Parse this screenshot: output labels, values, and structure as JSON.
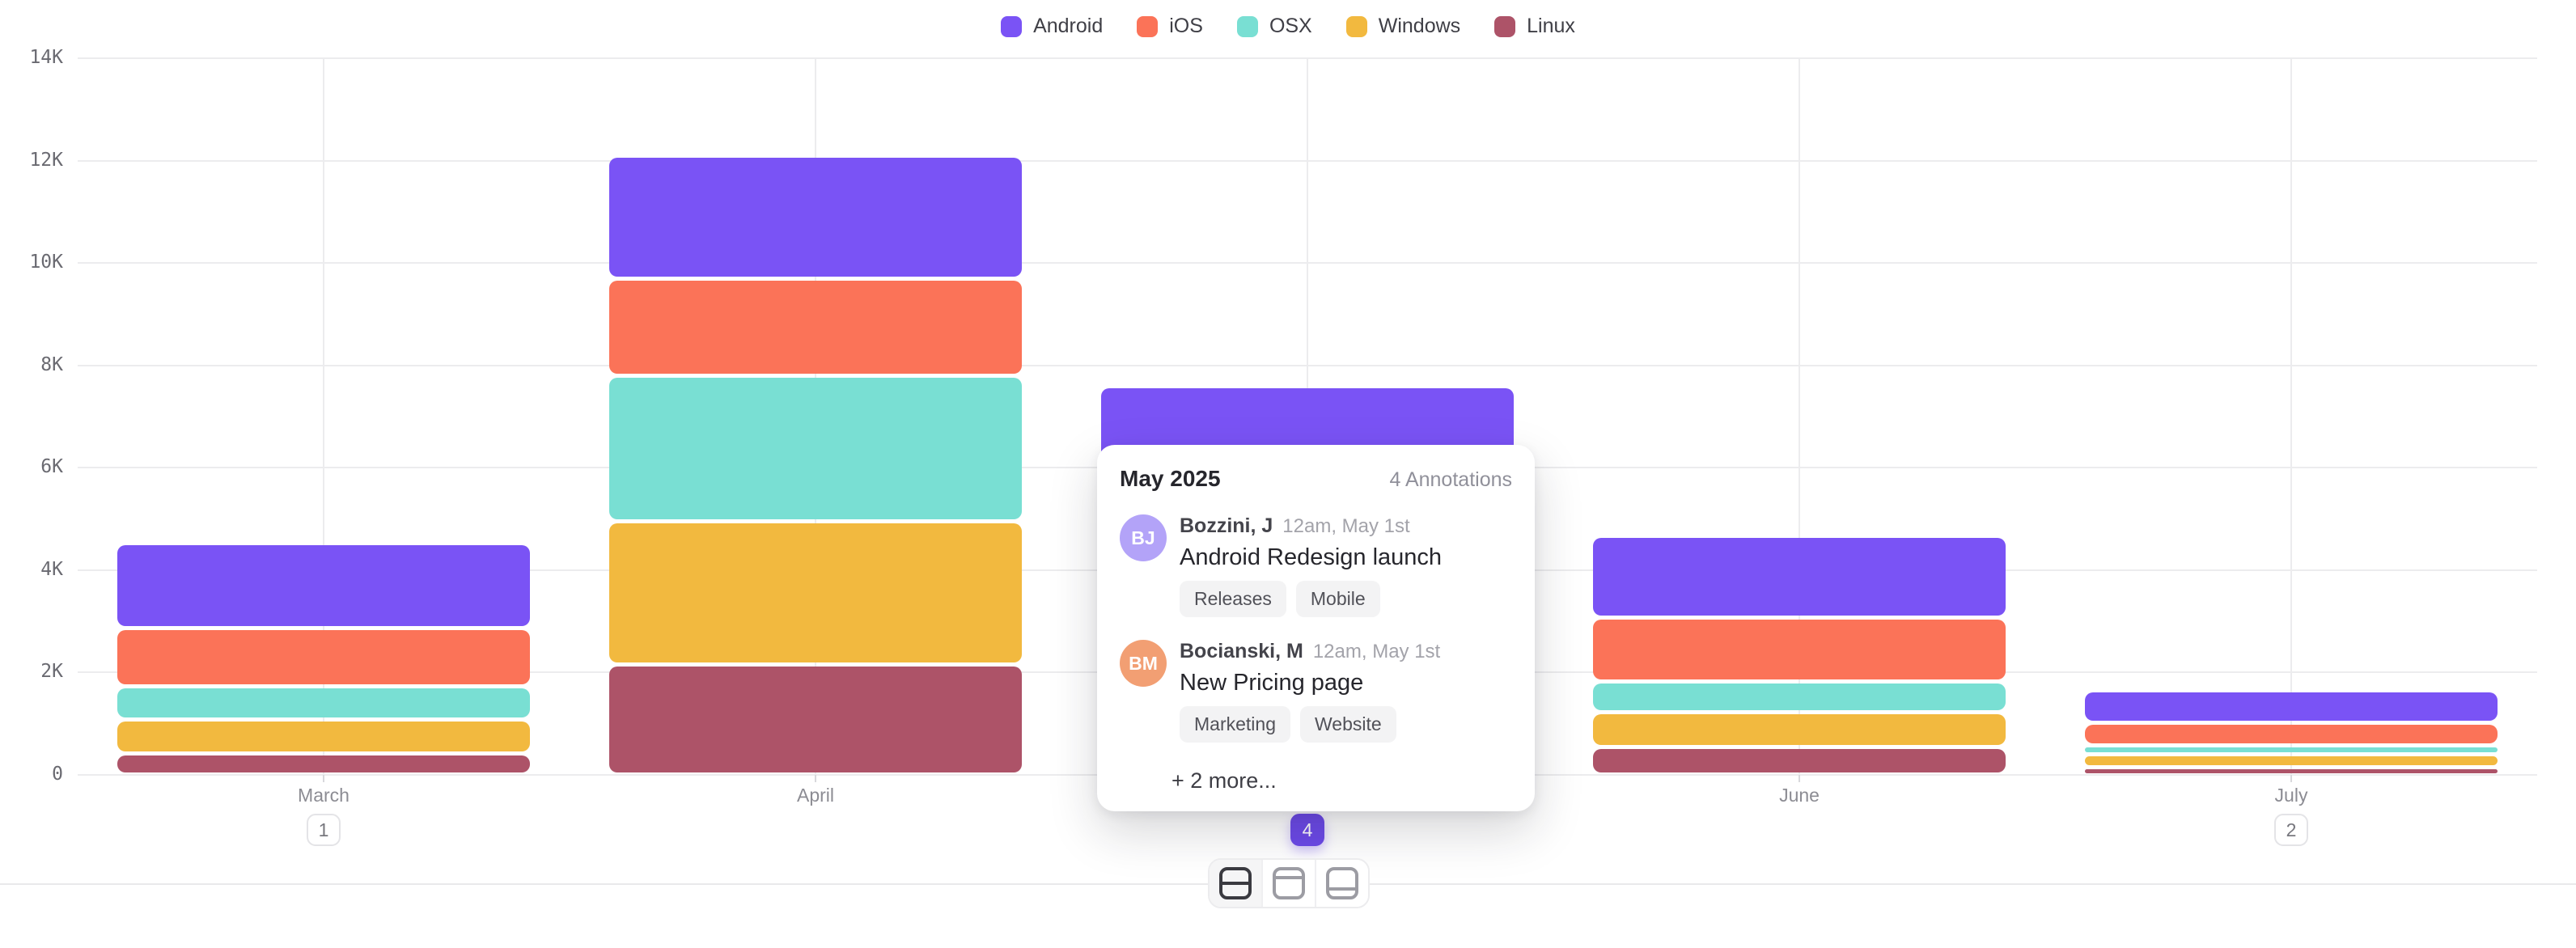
{
  "chart_data": {
    "type": "bar",
    "variant": "stacked",
    "title": "",
    "categories": [
      "March",
      "April",
      "May",
      "June",
      "July"
    ],
    "series": [
      {
        "name": "Android",
        "color": "#7a53f5",
        "values": [
          1650,
          2400,
          1900,
          1600,
          625
        ]
      },
      {
        "name": "iOS",
        "color": "#fb7358",
        "values": [
          1150,
          1900,
          1500,
          1250,
          450
        ]
      },
      {
        "name": "OSX",
        "color": "#79dfd3",
        "values": [
          650,
          2850,
          1500,
          600,
          175
        ]
      },
      {
        "name": "Windows",
        "color": "#f2b93f",
        "values": [
          650,
          2800,
          1600,
          675,
          250
        ]
      },
      {
        "name": "Linux",
        "color": "#ad5368",
        "values": [
          425,
          2150,
          1100,
          550,
          150
        ]
      }
    ],
    "stack_order_bottom_to_top": [
      "Linux",
      "Windows",
      "OSX",
      "iOS",
      "Android"
    ],
    "y_ticks": [
      "0",
      "2K",
      "4K",
      "6K",
      "8K",
      "10K",
      "12K",
      "14K"
    ],
    "ylim": [
      0,
      14000
    ],
    "grid": true,
    "legend_position": "top",
    "xlabel": "",
    "ylabel": ""
  },
  "legend": {
    "items": [
      {
        "label": "Android",
        "color": "#7a53f5"
      },
      {
        "label": "iOS",
        "color": "#fb7358"
      },
      {
        "label": "OSX",
        "color": "#79dfd3"
      },
      {
        "label": "Windows",
        "color": "#f2b93f"
      },
      {
        "label": "Linux",
        "color": "#ad5368"
      }
    ]
  },
  "annotation_badges": {
    "counts": [
      1,
      null,
      4,
      null,
      2
    ],
    "active_month": "May",
    "active_color": "#6c49e8"
  },
  "tooltip": {
    "title": "May 2025",
    "count_label": "4 Annotations",
    "items": [
      {
        "initials": "BJ",
        "avatar_color": "#b3a3f8",
        "name": "Bozzini, J",
        "time": "12am, May 1st",
        "note": "Android Redesign launch",
        "tags": [
          "Releases",
          "Mobile"
        ]
      },
      {
        "initials": "BM",
        "avatar_color": "#f29f73",
        "name": "Bocianski, M",
        "time": "12am, May 1st",
        "note": "New Pricing page",
        "tags": [
          "Marketing",
          "Website"
        ]
      }
    ],
    "more_label": "+ 2 more..."
  },
  "layout_switcher": {
    "options": [
      {
        "name": "split-middle",
        "active": true
      },
      {
        "name": "bar-top",
        "active": false
      },
      {
        "name": "bar-bottom",
        "active": false
      }
    ]
  },
  "colors": {
    "grid": "#ececee",
    "axis_text": "#6a6a71",
    "month_text": "#8c8c93",
    "background": "#ffffff"
  }
}
